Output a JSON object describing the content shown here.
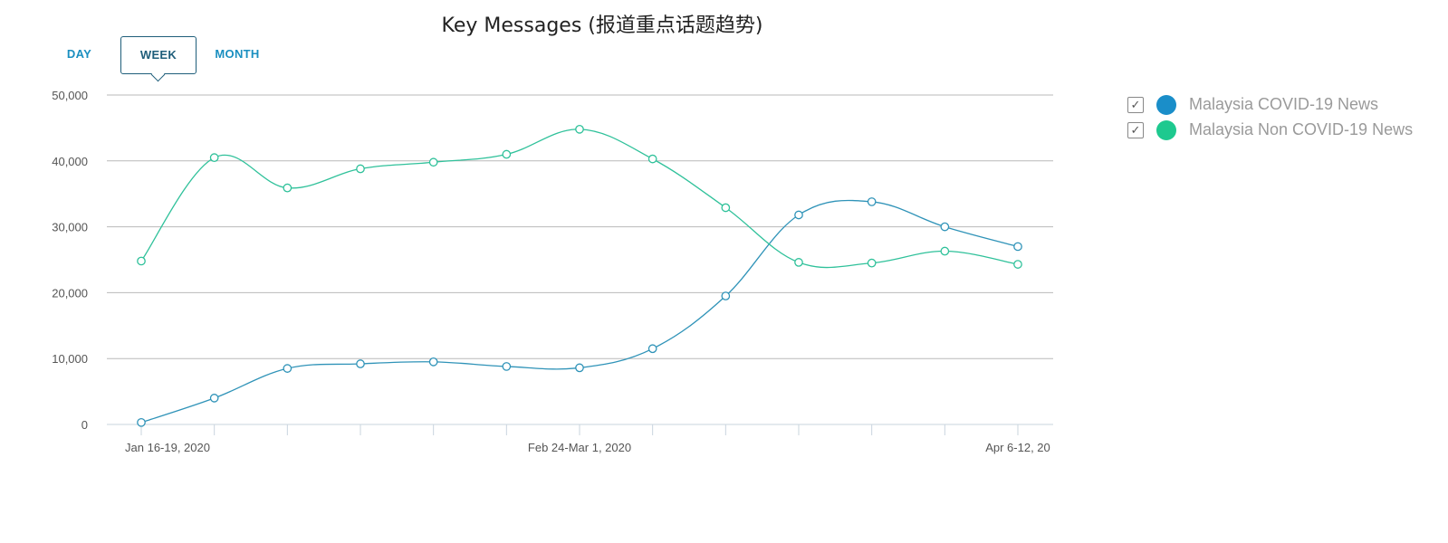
{
  "tabs": {
    "day": "DAY",
    "week": "WEEK",
    "month": "MONTH",
    "selected": "WEEK"
  },
  "legend": [
    {
      "label": "Malaysia COVID-19 News",
      "color": "#1a8ec9",
      "checked": true,
      "check_glyph": "✓"
    },
    {
      "label": "Malaysia Non COVID-19 News",
      "color": "#1ec98f",
      "checked": true,
      "check_glyph": "✓"
    }
  ],
  "chart_data": {
    "type": "line",
    "title": "Key Messages (报道重点话题趋势)",
    "xlabel": "",
    "ylabel": "",
    "ylim": [
      0,
      50000
    ],
    "yticks": [
      0,
      10000,
      20000,
      30000,
      40000,
      50000
    ],
    "ytick_labels": [
      "0",
      "10,000",
      "20,000",
      "30,000",
      "40,000",
      "50,000"
    ],
    "x_count": 13,
    "xtick_labels": [
      {
        "index": 0,
        "label": "Jan 16-19, 2020"
      },
      {
        "index": 6,
        "label": "Feb 24-Mar 1, 2020"
      },
      {
        "index": 12,
        "label": "Apr 6-12, 20"
      }
    ],
    "grid": true,
    "legend_position": "right",
    "series": [
      {
        "name": "Malaysia COVID-19 News",
        "color": "#2f93b8",
        "values": [
          300,
          4000,
          8500,
          9200,
          9500,
          8800,
          8600,
          11500,
          19500,
          31800,
          33800,
          30000,
          27000
        ]
      },
      {
        "name": "Malaysia Non COVID-19 News",
        "color": "#2fc19a",
        "values": [
          24800,
          40500,
          35900,
          38800,
          39800,
          41000,
          44800,
          40300,
          32900,
          24600,
          24500,
          26300,
          24300
        ]
      }
    ]
  }
}
